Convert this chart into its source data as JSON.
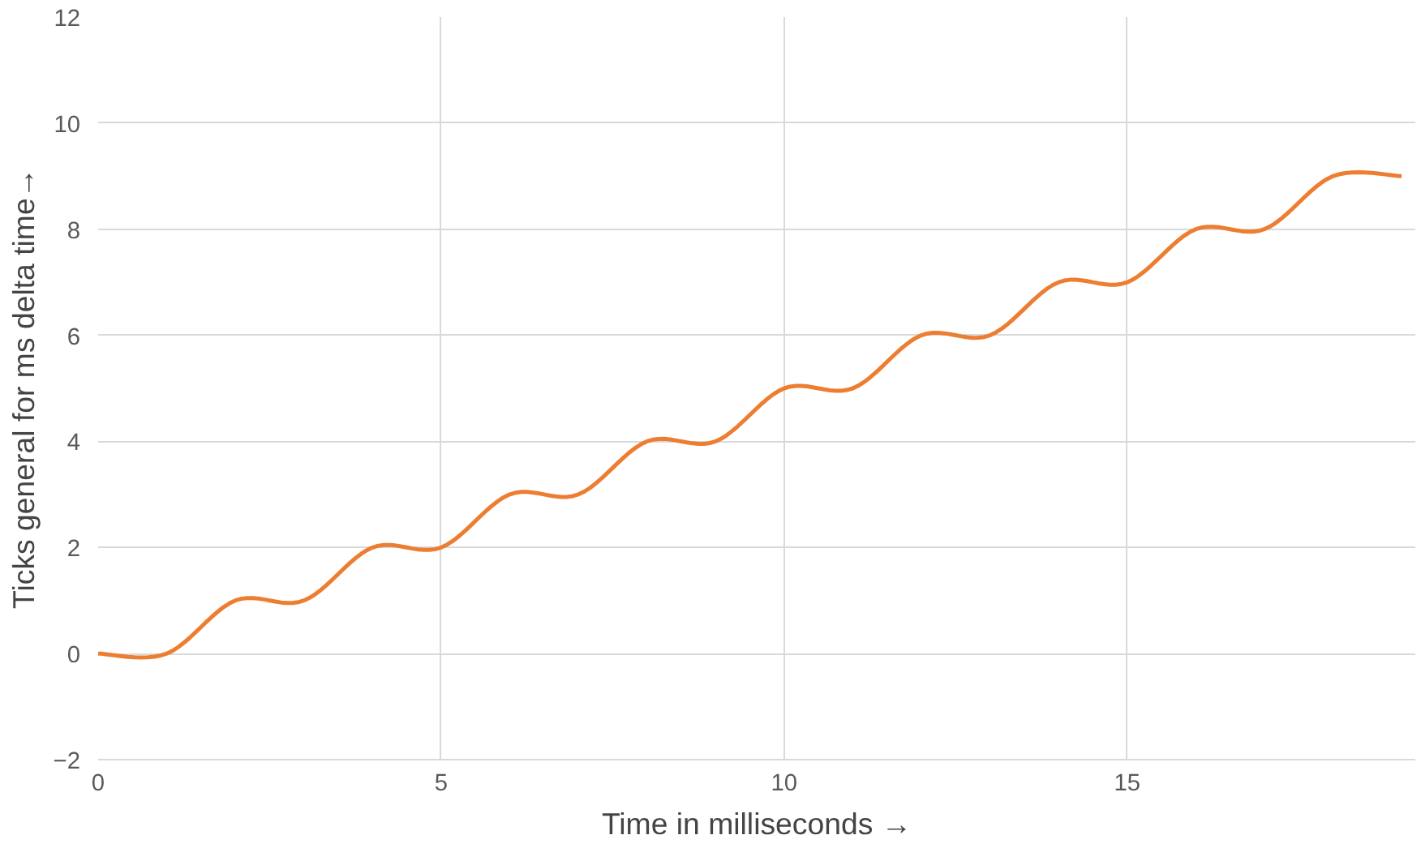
{
  "chart_data": {
    "type": "line",
    "xlabel": "Time in milliseconds →",
    "ylabel": "Ticks general for ms delta time→",
    "x": [
      0,
      1,
      2,
      3,
      4,
      5,
      6,
      7,
      8,
      9,
      10,
      11,
      12,
      13,
      14,
      15,
      16,
      17,
      18,
      19
    ],
    "series": [
      {
        "color": "#ed7d31",
        "values": [
          0,
          0,
          1,
          1,
          2,
          2,
          3,
          3,
          4,
          4,
          5,
          5,
          6,
          6,
          7,
          7,
          8,
          8,
          9,
          9
        ]
      }
    ],
    "xlim": [
      0,
      19.2
    ],
    "xticks": [
      0,
      5,
      10,
      15
    ],
    "ylim": [
      -2,
      12
    ],
    "yticks": [
      -2,
      0,
      2,
      4,
      6,
      8,
      10,
      12
    ],
    "grid": true,
    "marker": "none",
    "line_style": "solid"
  }
}
